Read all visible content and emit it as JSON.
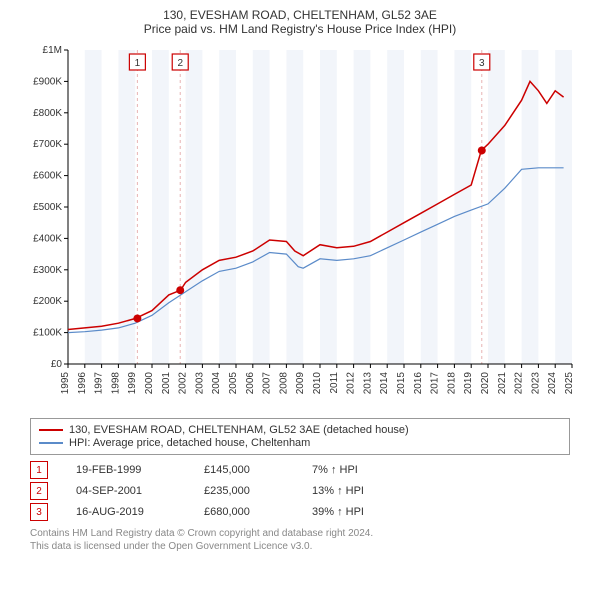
{
  "title_line1": "130, EVESHAM ROAD, CHELTENHAM, GL52 3AE",
  "title_line2": "Price paid vs. HM Land Registry's House Price Index (HPI)",
  "chart": {
    "type": "line",
    "background_color": "#ffffff",
    "grid_band_color": "#f2f5fa",
    "axis_color": "#000000",
    "x_years": [
      1995,
      1996,
      1997,
      1998,
      1999,
      2000,
      2001,
      2002,
      2003,
      2004,
      2005,
      2006,
      2007,
      2008,
      2009,
      2010,
      2011,
      2012,
      2013,
      2014,
      2015,
      2016,
      2017,
      2018,
      2019,
      2020,
      2021,
      2022,
      2023,
      2024,
      2025
    ],
    "y_ticks": [
      0,
      100000,
      200000,
      300000,
      400000,
      500000,
      600000,
      700000,
      800000,
      900000,
      1000000
    ],
    "y_tick_labels": [
      "£0",
      "£100K",
      "£200K",
      "£300K",
      "£400K",
      "£500K",
      "£600K",
      "£700K",
      "£800K",
      "£900K",
      "£1M"
    ],
    "ylim": [
      0,
      1000000
    ],
    "xlim": [
      1995,
      2025
    ],
    "series": [
      {
        "name": "property",
        "color": "#cc0000",
        "width": 1.5,
        "points": [
          [
            1995,
            110000
          ],
          [
            1996,
            115000
          ],
          [
            1997,
            120000
          ],
          [
            1998,
            130000
          ],
          [
            1999,
            145000
          ],
          [
            2000,
            170000
          ],
          [
            2001,
            220000
          ],
          [
            2001.7,
            235000
          ],
          [
            2002,
            260000
          ],
          [
            2003,
            300000
          ],
          [
            2004,
            330000
          ],
          [
            2005,
            340000
          ],
          [
            2006,
            360000
          ],
          [
            2007,
            395000
          ],
          [
            2008,
            390000
          ],
          [
            2008.5,
            360000
          ],
          [
            2009,
            345000
          ],
          [
            2010,
            380000
          ],
          [
            2011,
            370000
          ],
          [
            2012,
            375000
          ],
          [
            2013,
            390000
          ],
          [
            2014,
            420000
          ],
          [
            2015,
            450000
          ],
          [
            2016,
            480000
          ],
          [
            2017,
            510000
          ],
          [
            2018,
            540000
          ],
          [
            2019,
            570000
          ],
          [
            2019.6,
            680000
          ],
          [
            2020,
            700000
          ],
          [
            2021,
            760000
          ],
          [
            2022,
            840000
          ],
          [
            2022.5,
            900000
          ],
          [
            2023,
            870000
          ],
          [
            2023.5,
            830000
          ],
          [
            2024,
            870000
          ],
          [
            2024.5,
            850000
          ]
        ]
      },
      {
        "name": "hpi",
        "color": "#5b8bc9",
        "width": 1.2,
        "points": [
          [
            1995,
            100000
          ],
          [
            1996,
            103000
          ],
          [
            1997,
            108000
          ],
          [
            1998,
            115000
          ],
          [
            1999,
            130000
          ],
          [
            2000,
            155000
          ],
          [
            2001,
            195000
          ],
          [
            2002,
            230000
          ],
          [
            2003,
            265000
          ],
          [
            2004,
            295000
          ],
          [
            2005,
            305000
          ],
          [
            2006,
            325000
          ],
          [
            2007,
            355000
          ],
          [
            2008,
            350000
          ],
          [
            2008.7,
            310000
          ],
          [
            2009,
            305000
          ],
          [
            2010,
            335000
          ],
          [
            2011,
            330000
          ],
          [
            2012,
            335000
          ],
          [
            2013,
            345000
          ],
          [
            2014,
            370000
          ],
          [
            2015,
            395000
          ],
          [
            2016,
            420000
          ],
          [
            2017,
            445000
          ],
          [
            2018,
            470000
          ],
          [
            2019,
            490000
          ],
          [
            2020,
            510000
          ],
          [
            2021,
            560000
          ],
          [
            2022,
            620000
          ],
          [
            2023,
            625000
          ],
          [
            2024,
            625000
          ],
          [
            2024.5,
            625000
          ]
        ]
      }
    ],
    "sale_markers": [
      {
        "n": "1",
        "x": 1999.13,
        "y": 145000
      },
      {
        "n": "2",
        "x": 2001.68,
        "y": 235000
      },
      {
        "n": "3",
        "x": 2019.63,
        "y": 680000
      }
    ],
    "marker_color": "#cc0000",
    "marker_line_color": "#e7b3b3",
    "label_fontsize": 10
  },
  "legend": {
    "items": [
      {
        "label": "130, EVESHAM ROAD, CHELTENHAM, GL52 3AE (detached house)",
        "color": "#cc0000"
      },
      {
        "label": "HPI: Average price, detached house, Cheltenham",
        "color": "#5b8bc9"
      }
    ]
  },
  "sales": [
    {
      "n": "1",
      "date": "19-FEB-1999",
      "price": "£145,000",
      "diff": "7% ↑ HPI"
    },
    {
      "n": "2",
      "date": "04-SEP-2001",
      "price": "£235,000",
      "diff": "13% ↑ HPI"
    },
    {
      "n": "3",
      "date": "16-AUG-2019",
      "price": "£680,000",
      "diff": "39% ↑ HPI"
    }
  ],
  "footer_line1": "Contains HM Land Registry data © Crown copyright and database right 2024.",
  "footer_line2": "This data is licensed under the Open Government Licence v3.0."
}
